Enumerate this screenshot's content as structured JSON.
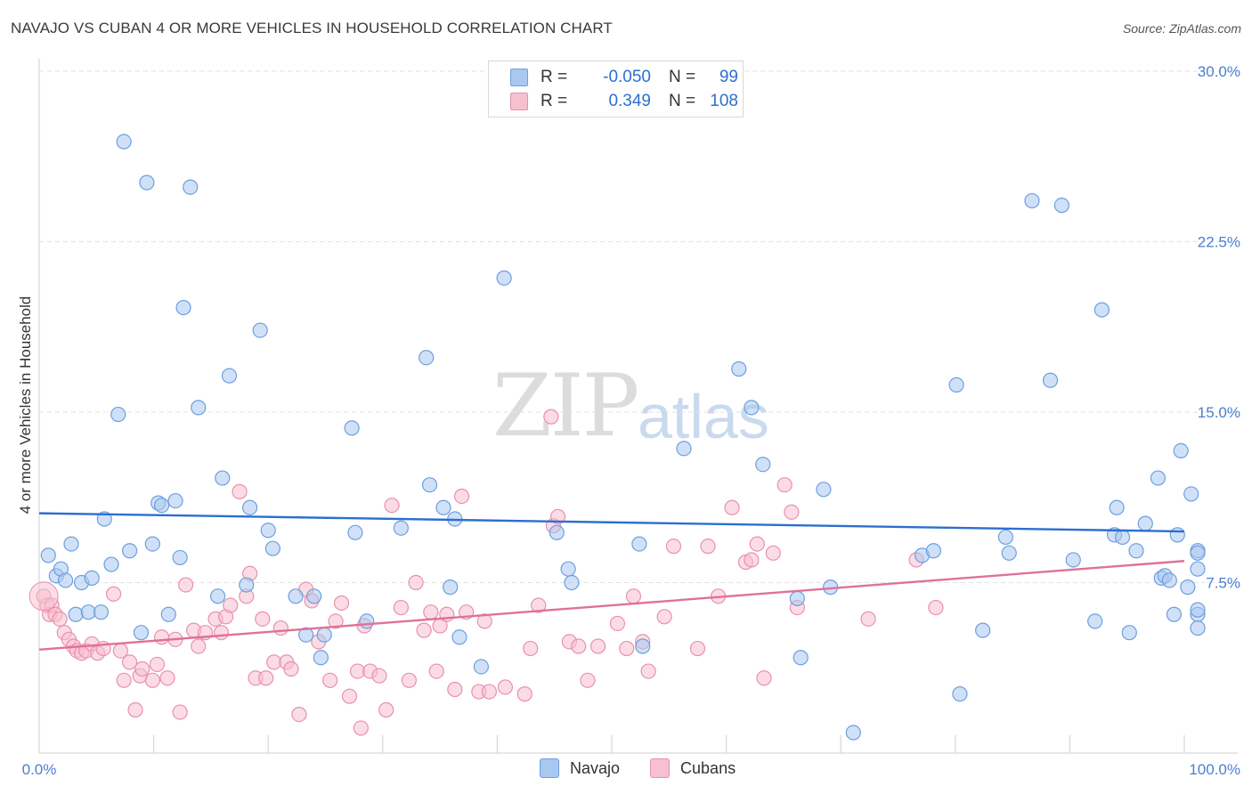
{
  "title": "NAVAJO VS CUBAN 4 OR MORE VEHICLES IN HOUSEHOLD CORRELATION CHART",
  "source": "Source: ZipAtlas.com",
  "watermark_a": "ZIP",
  "watermark_b": "atlas",
  "legend": {
    "r_label": "R =",
    "n_label": "N =",
    "rows": [
      {
        "r": "-0.050",
        "n": "99",
        "color": "#a9c8f0"
      },
      {
        "r": "0.349",
        "n": "108",
        "color": "#f5b8cb"
      }
    ]
  },
  "bottom_legend": [
    "Navajo",
    "Cubans"
  ],
  "colors": {
    "navajo_fill": "#a9c8f0",
    "navajo_stroke": "#6d9fe0",
    "navajo_line": "#2c6fcf",
    "cuban_fill": "#f7c0d0",
    "cuban_stroke": "#e990ad",
    "cuban_line": "#e0709a",
    "axis_label": "#4a7fd0"
  },
  "chart_data": {
    "type": "scatter",
    "title": "NAVAJO VS CUBAN 4 OR MORE VEHICLES IN HOUSEHOLD CORRELATION CHART",
    "xlabel": "",
    "ylabel": "4 or more Vehicles in Household",
    "xlim": [
      0,
      100
    ],
    "ylim": [
      0,
      30
    ],
    "x_tick_labels": [
      "0.0%",
      "100.0%"
    ],
    "y_tick_labels": [
      "7.5%",
      "15.0%",
      "22.5%",
      "30.0%"
    ],
    "y_ticks": [
      7.5,
      15,
      22.5,
      30
    ],
    "grid": true,
    "legend_position": "top-center",
    "series": [
      {
        "name": "Navajo",
        "trend": {
          "x": [
            0,
            100
          ],
          "y": [
            10.55,
            9.75
          ]
        },
        "points": [
          [
            0.8,
            8.7
          ],
          [
            1.5,
            7.8
          ],
          [
            1.9,
            8.1
          ],
          [
            2.3,
            7.6
          ],
          [
            2.8,
            9.2
          ],
          [
            3.2,
            6.1
          ],
          [
            3.7,
            7.5
          ],
          [
            4.3,
            6.2
          ],
          [
            4.6,
            7.7
          ],
          [
            5.4,
            6.2
          ],
          [
            5.7,
            10.3
          ],
          [
            6.3,
            8.3
          ],
          [
            6.9,
            14.9
          ],
          [
            7.4,
            26.9
          ],
          [
            7.9,
            8.9
          ],
          [
            8.9,
            5.3
          ],
          [
            9.4,
            25.1
          ],
          [
            9.9,
            9.2
          ],
          [
            10.4,
            11.0
          ],
          [
            10.7,
            10.9
          ],
          [
            11.3,
            6.1
          ],
          [
            11.9,
            11.1
          ],
          [
            12.3,
            8.6
          ],
          [
            12.6,
            19.6
          ],
          [
            13.2,
            24.9
          ],
          [
            13.9,
            15.2
          ],
          [
            15.6,
            6.9
          ],
          [
            16.0,
            12.1
          ],
          [
            16.6,
            16.6
          ],
          [
            18.1,
            7.4
          ],
          [
            18.4,
            10.8
          ],
          [
            19.3,
            18.6
          ],
          [
            20.0,
            9.8
          ],
          [
            20.4,
            9.0
          ],
          [
            22.4,
            6.9
          ],
          [
            23.3,
            5.2
          ],
          [
            24.0,
            6.9
          ],
          [
            24.6,
            4.2
          ],
          [
            24.9,
            5.2
          ],
          [
            27.3,
            14.3
          ],
          [
            27.6,
            9.7
          ],
          [
            28.6,
            5.8
          ],
          [
            31.6,
            9.9
          ],
          [
            33.8,
            17.4
          ],
          [
            34.1,
            11.8
          ],
          [
            35.3,
            10.8
          ],
          [
            35.9,
            7.3
          ],
          [
            36.3,
            10.3
          ],
          [
            36.7,
            5.1
          ],
          [
            38.6,
            3.8
          ],
          [
            40.6,
            20.9
          ],
          [
            45.2,
            9.7
          ],
          [
            46.2,
            8.1
          ],
          [
            46.5,
            7.5
          ],
          [
            52.4,
            9.2
          ],
          [
            52.7,
            4.7
          ],
          [
            56.3,
            13.4
          ],
          [
            61.1,
            16.9
          ],
          [
            62.2,
            15.2
          ],
          [
            63.2,
            12.7
          ],
          [
            66.2,
            6.8
          ],
          [
            66.5,
            4.2
          ],
          [
            68.5,
            11.6
          ],
          [
            69.1,
            7.3
          ],
          [
            71.1,
            0.9
          ],
          [
            77.1,
            8.7
          ],
          [
            78.1,
            8.9
          ],
          [
            80.1,
            16.2
          ],
          [
            80.4,
            2.6
          ],
          [
            82.4,
            5.4
          ],
          [
            84.4,
            9.5
          ],
          [
            84.7,
            8.8
          ],
          [
            86.7,
            24.3
          ],
          [
            88.3,
            16.4
          ],
          [
            89.3,
            24.1
          ],
          [
            90.3,
            8.5
          ],
          [
            92.2,
            5.8
          ],
          [
            92.8,
            19.5
          ],
          [
            93.9,
            9.6
          ],
          [
            94.1,
            10.8
          ],
          [
            94.6,
            9.5
          ],
          [
            95.2,
            5.3
          ],
          [
            95.8,
            8.9
          ],
          [
            96.6,
            10.1
          ],
          [
            97.7,
            12.1
          ],
          [
            98.0,
            7.7
          ],
          [
            98.3,
            7.8
          ],
          [
            98.7,
            7.6
          ],
          [
            99.1,
            6.1
          ],
          [
            99.4,
            9.6
          ],
          [
            99.7,
            13.3
          ],
          [
            100.3,
            7.3
          ],
          [
            100.6,
            11.4
          ],
          [
            101.3,
            6.1
          ],
          [
            101.7,
            8.9
          ],
          [
            102.2,
            5.5
          ],
          [
            102.4,
            8.1
          ],
          [
            103.0,
            8.8
          ],
          [
            104.0,
            6.3
          ]
        ]
      },
      {
        "name": "Cubans",
        "trend": {
          "x": [
            0,
            100
          ],
          "y": [
            4.55,
            8.45
          ]
        },
        "points": [
          [
            0.4,
            6.9
          ],
          [
            0.7,
            6.5
          ],
          [
            0.9,
            6.1
          ],
          [
            1.1,
            6.5
          ],
          [
            1.4,
            6.1
          ],
          [
            1.8,
            5.9
          ],
          [
            2.2,
            5.3
          ],
          [
            2.6,
            5.0
          ],
          [
            3.0,
            4.7
          ],
          [
            3.3,
            4.5
          ],
          [
            3.7,
            4.4
          ],
          [
            4.1,
            4.5
          ],
          [
            4.6,
            4.8
          ],
          [
            5.1,
            4.4
          ],
          [
            5.6,
            4.6
          ],
          [
            6.5,
            7.0
          ],
          [
            7.1,
            4.5
          ],
          [
            7.4,
            3.2
          ],
          [
            7.9,
            4.0
          ],
          [
            8.4,
            1.9
          ],
          [
            8.8,
            3.4
          ],
          [
            9.0,
            3.7
          ],
          [
            9.9,
            3.2
          ],
          [
            10.3,
            3.9
          ],
          [
            10.7,
            5.1
          ],
          [
            11.2,
            3.3
          ],
          [
            11.9,
            5.0
          ],
          [
            12.3,
            1.8
          ],
          [
            12.8,
            7.4
          ],
          [
            13.5,
            5.4
          ],
          [
            13.9,
            4.7
          ],
          [
            14.5,
            5.3
          ],
          [
            15.4,
            5.9
          ],
          [
            15.9,
            5.3
          ],
          [
            16.3,
            6.0
          ],
          [
            16.7,
            6.5
          ],
          [
            17.5,
            11.5
          ],
          [
            18.1,
            6.9
          ],
          [
            18.4,
            7.9
          ],
          [
            18.9,
            3.3
          ],
          [
            19.5,
            5.9
          ],
          [
            19.8,
            3.3
          ],
          [
            20.5,
            4.0
          ],
          [
            21.1,
            5.5
          ],
          [
            21.6,
            4.0
          ],
          [
            22.0,
            3.7
          ],
          [
            22.7,
            1.7
          ],
          [
            23.3,
            7.2
          ],
          [
            23.8,
            6.7
          ],
          [
            24.4,
            4.9
          ],
          [
            25.4,
            3.2
          ],
          [
            25.9,
            5.8
          ],
          [
            26.4,
            6.6
          ],
          [
            27.1,
            2.5
          ],
          [
            27.8,
            3.6
          ],
          [
            28.1,
            1.1
          ],
          [
            28.4,
            5.6
          ],
          [
            28.9,
            3.6
          ],
          [
            29.7,
            3.4
          ],
          [
            30.3,
            1.9
          ],
          [
            30.8,
            10.9
          ],
          [
            31.6,
            6.4
          ],
          [
            32.3,
            3.2
          ],
          [
            32.9,
            7.5
          ],
          [
            33.6,
            5.4
          ],
          [
            34.2,
            6.2
          ],
          [
            34.7,
            3.6
          ],
          [
            35.0,
            5.6
          ],
          [
            35.6,
            6.1
          ],
          [
            36.3,
            2.8
          ],
          [
            36.9,
            11.3
          ],
          [
            37.3,
            6.2
          ],
          [
            38.4,
            2.7
          ],
          [
            38.9,
            5.8
          ],
          [
            39.3,
            2.7
          ],
          [
            40.7,
            2.9
          ],
          [
            42.4,
            2.6
          ],
          [
            42.9,
            4.6
          ],
          [
            43.6,
            6.5
          ],
          [
            44.7,
            14.8
          ],
          [
            44.9,
            10.0
          ],
          [
            45.3,
            10.4
          ],
          [
            46.3,
            4.9
          ],
          [
            47.1,
            4.7
          ],
          [
            47.9,
            3.2
          ],
          [
            48.8,
            4.7
          ],
          [
            50.5,
            5.7
          ],
          [
            51.3,
            4.6
          ],
          [
            51.9,
            6.9
          ],
          [
            52.7,
            4.9
          ],
          [
            53.2,
            3.6
          ],
          [
            54.6,
            6.0
          ],
          [
            55.4,
            9.1
          ],
          [
            57.5,
            4.6
          ],
          [
            58.4,
            9.1
          ],
          [
            59.3,
            6.9
          ],
          [
            60.5,
            10.8
          ],
          [
            61.7,
            8.4
          ],
          [
            62.2,
            8.5
          ],
          [
            62.7,
            9.2
          ],
          [
            63.3,
            3.3
          ],
          [
            64.1,
            8.8
          ],
          [
            65.1,
            11.8
          ],
          [
            65.7,
            10.6
          ],
          [
            66.2,
            6.4
          ],
          [
            72.4,
            5.9
          ],
          [
            76.6,
            8.5
          ],
          [
            78.3,
            6.4
          ]
        ]
      }
    ]
  }
}
